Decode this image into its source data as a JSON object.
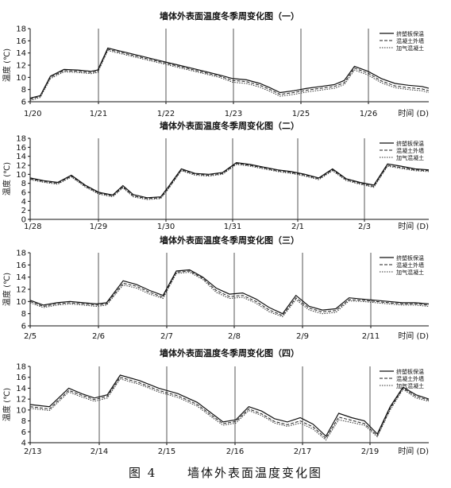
{
  "figure": {
    "caption_number": "图 4",
    "caption_text": "墙体外表面温度变化图"
  },
  "chart_data": [
    {
      "type": "line",
      "title": "墙体外表面温度冬季周变化图（一）",
      "xlabel": "时间 (D)",
      "ylabel": "温度 (℃)",
      "ylim": [
        6,
        18
      ],
      "yticks": [
        6,
        8,
        10,
        12,
        14,
        16,
        18
      ],
      "xticks": [
        "1/20",
        "1/21",
        "1/22",
        "1/23",
        "1/25",
        "1/26"
      ],
      "legend_position": "top-right",
      "x": [
        0,
        0.15,
        0.3,
        0.5,
        0.7,
        0.9,
        1.0,
        1.15,
        1.3,
        1.6,
        1.9,
        2.2,
        2.5,
        2.8,
        3.0,
        3.2,
        3.4,
        3.55,
        3.7,
        3.9,
        4.1,
        4.3,
        4.5,
        4.65,
        4.8,
        5.0,
        5.2,
        5.4,
        5.6,
        5.8,
        5.9
      ],
      "series": [
        {
          "name": "挤塑板保温",
          "values": [
            6.6,
            7.0,
            10.2,
            11.3,
            11.2,
            11.0,
            11.2,
            14.8,
            14.4,
            13.6,
            12.8,
            12.0,
            11.2,
            10.4,
            9.8,
            9.6,
            9.0,
            8.3,
            7.5,
            7.8,
            8.2,
            8.5,
            8.8,
            9.5,
            11.8,
            11.0,
            9.8,
            9.0,
            8.7,
            8.5,
            8.2
          ]
        },
        {
          "name": "混凝土外墙",
          "values": [
            6.4,
            6.9,
            10.0,
            11.1,
            11.0,
            10.8,
            11.0,
            14.6,
            14.2,
            13.4,
            12.6,
            11.8,
            11.0,
            10.2,
            9.5,
            9.3,
            8.7,
            8.0,
            7.2,
            7.5,
            7.9,
            8.2,
            8.5,
            9.1,
            11.5,
            10.7,
            9.4,
            8.6,
            8.3,
            8.1,
            7.8
          ]
        },
        {
          "name": "加气混凝土",
          "values": [
            6.2,
            6.7,
            9.8,
            10.9,
            10.8,
            10.6,
            10.8,
            14.4,
            14.0,
            13.2,
            12.4,
            11.6,
            10.8,
            10.0,
            9.2,
            9.0,
            8.4,
            7.7,
            6.9,
            7.2,
            7.6,
            7.9,
            8.2,
            8.8,
            11.2,
            10.4,
            9.1,
            8.3,
            8.0,
            7.8,
            7.5
          ]
        }
      ]
    },
    {
      "type": "line",
      "title": "墙体外表面温度冬季周变化图（二）",
      "xlabel": "时间 (D)",
      "ylabel": "温度 (℃)",
      "ylim": [
        0,
        18
      ],
      "yticks": [
        0,
        2,
        4,
        6,
        8,
        10,
        12,
        14,
        16,
        18
      ],
      "xticks": [
        "1/28",
        "1/29",
        "1/30",
        "1/31",
        "2/1",
        "2/3"
      ],
      "legend_position": "top-right",
      "x": [
        0,
        0.2,
        0.4,
        0.6,
        0.8,
        1.0,
        1.2,
        1.35,
        1.5,
        1.7,
        1.9,
        2.0,
        2.2,
        2.4,
        2.6,
        2.8,
        3.0,
        3.2,
        3.4,
        3.6,
        3.8,
        4.0,
        4.2,
        4.4,
        4.6,
        4.8,
        5.0,
        5.2,
        5.4,
        5.6,
        5.8
      ],
      "series": [
        {
          "name": "挤塑板保温",
          "values": [
            9.2,
            8.6,
            8.2,
            9.8,
            7.6,
            6.0,
            5.4,
            7.5,
            5.5,
            4.8,
            5.0,
            7.0,
            11.2,
            10.2,
            10.0,
            10.4,
            12.6,
            12.2,
            11.6,
            11.0,
            10.6,
            10.0,
            9.2,
            11.2,
            9.0,
            8.2,
            7.6,
            12.3,
            11.8,
            11.2,
            11.0
          ]
        },
        {
          "name": "混凝土外墙",
          "values": [
            9.0,
            8.4,
            8.0,
            9.6,
            7.4,
            5.8,
            5.2,
            7.2,
            5.2,
            4.6,
            4.8,
            6.7,
            11.0,
            10.0,
            9.8,
            10.2,
            12.4,
            12.0,
            11.4,
            10.8,
            10.4,
            9.8,
            9.0,
            11.0,
            8.8,
            8.0,
            7.3,
            12.0,
            11.5,
            11.0,
            10.8
          ]
        },
        {
          "name": "加气混凝土",
          "values": [
            8.8,
            8.2,
            7.8,
            9.4,
            7.2,
            5.6,
            5.0,
            7.0,
            5.0,
            4.4,
            4.6,
            6.5,
            10.8,
            9.8,
            9.6,
            10.0,
            12.2,
            11.8,
            11.2,
            10.6,
            10.2,
            9.6,
            8.8,
            10.8,
            8.6,
            7.8,
            7.1,
            11.8,
            11.3,
            10.8,
            10.6
          ]
        }
      ]
    },
    {
      "type": "line",
      "title": "墙体外表面温度冬季周变化图（三）",
      "xlabel": "时间 (D)",
      "ylabel": "温度 (℃)",
      "ylim": [
        6,
        18
      ],
      "yticks": [
        6,
        8,
        10,
        12,
        14,
        16,
        18
      ],
      "xticks": [
        "2/5",
        "2/6",
        "2/7",
        "2/8",
        "2/9",
        "2/11"
      ],
      "legend_position": "top-right",
      "x": [
        0,
        0.2,
        0.4,
        0.6,
        0.8,
        1.0,
        1.15,
        1.4,
        1.6,
        1.8,
        2.0,
        2.2,
        2.4,
        2.6,
        2.8,
        3.0,
        3.2,
        3.4,
        3.6,
        3.8,
        4.0,
        4.2,
        4.4,
        4.6,
        4.8,
        5.0,
        5.2,
        5.4,
        5.6,
        5.8,
        6.0
      ],
      "series": [
        {
          "name": "挤塑板保温",
          "values": [
            10.2,
            9.4,
            9.8,
            10.0,
            9.8,
            9.6,
            9.8,
            13.4,
            12.8,
            11.8,
            11.0,
            15.0,
            15.2,
            14.0,
            12.2,
            11.2,
            11.4,
            10.4,
            9.0,
            8.0,
            11.0,
            9.2,
            8.6,
            8.8,
            10.6,
            10.4,
            10.2,
            10.0,
            9.8,
            9.8,
            9.6
          ]
        },
        {
          "name": "混凝土外墙",
          "values": [
            10.0,
            9.2,
            9.6,
            9.8,
            9.6,
            9.4,
            9.6,
            13.0,
            12.5,
            11.5,
            10.7,
            14.8,
            15.0,
            13.8,
            11.8,
            10.8,
            11.0,
            10.0,
            8.6,
            7.7,
            10.6,
            8.9,
            8.3,
            8.5,
            10.3,
            10.2,
            10.0,
            9.8,
            9.6,
            9.6,
            9.4
          ]
        },
        {
          "name": "加气混凝土",
          "values": [
            9.8,
            9.0,
            9.4,
            9.6,
            9.4,
            9.2,
            9.4,
            12.7,
            12.2,
            11.2,
            10.5,
            14.6,
            14.8,
            13.6,
            11.5,
            10.5,
            10.7,
            9.7,
            8.3,
            7.5,
            10.3,
            8.6,
            8.0,
            8.2,
            10.1,
            10.0,
            9.8,
            9.6,
            9.4,
            9.4,
            9.2
          ]
        }
      ]
    },
    {
      "type": "line",
      "title": "墙体外表面温度冬季周变化图（四）",
      "xlabel": "时间 (D)",
      "ylabel": "温度 (℃)",
      "ylim": [
        4,
        18
      ],
      "yticks": [
        4,
        6,
        8,
        10,
        12,
        14,
        16,
        18
      ],
      "xticks": [
        "2/13",
        "2/14",
        "2/15",
        "2/16",
        "2/17",
        "2/19"
      ],
      "legend_position": "top-right",
      "x": [
        0,
        0.3,
        0.6,
        0.8,
        1.0,
        1.2,
        1.4,
        1.7,
        2.0,
        2.3,
        2.6,
        2.8,
        3.0,
        3.2,
        3.4,
        3.6,
        3.8,
        4.0,
        4.2,
        4.4,
        4.6,
        4.8,
        5.0,
        5.2,
        5.4,
        5.6,
        5.8,
        6.0,
        6.2
      ],
      "series": [
        {
          "name": "挤塑板保温",
          "values": [
            11.0,
            10.6,
            14.0,
            13.0,
            12.2,
            12.8,
            16.4,
            15.4,
            14.0,
            13.0,
            11.4,
            9.6,
            7.8,
            8.2,
            10.6,
            9.8,
            8.4,
            7.8,
            8.6,
            7.4,
            5.2,
            9.4,
            8.6,
            8.0,
            5.6,
            10.6,
            14.2,
            12.8,
            12.0
          ]
        },
        {
          "name": "混凝土外墙",
          "values": [
            10.6,
            10.2,
            13.6,
            12.7,
            11.9,
            12.5,
            16.0,
            15.0,
            13.6,
            12.6,
            11.0,
            9.2,
            7.5,
            7.9,
            10.2,
            9.3,
            7.9,
            7.3,
            8.0,
            6.9,
            4.8,
            8.7,
            8.1,
            7.5,
            5.3,
            10.3,
            14.0,
            12.5,
            11.8
          ]
        },
        {
          "name": "加气混凝土",
          "values": [
            10.3,
            9.9,
            13.3,
            12.4,
            11.6,
            12.2,
            15.7,
            14.7,
            13.3,
            12.3,
            10.7,
            8.9,
            7.2,
            7.6,
            9.9,
            9.0,
            7.6,
            7.0,
            7.6,
            6.5,
            4.5,
            8.2,
            7.7,
            7.2,
            5.1,
            10.0,
            13.8,
            12.2,
            11.6
          ]
        }
      ]
    }
  ]
}
